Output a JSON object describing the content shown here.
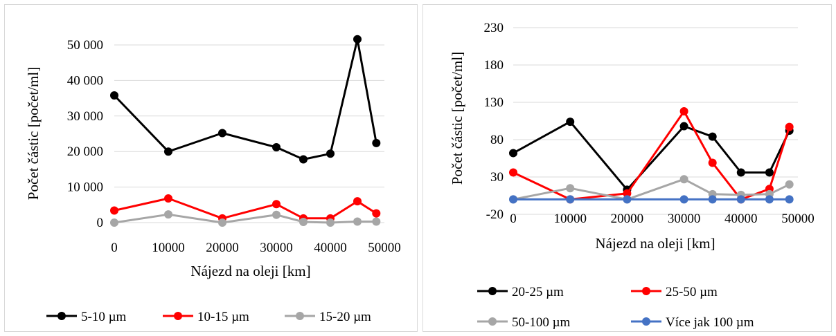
{
  "chart_data": [
    {
      "type": "line",
      "title": "",
      "xlabel": "Nájezd na oleji [km]",
      "ylabel": "Počet částic [počet/ml]",
      "x": [
        0,
        10000,
        20000,
        30000,
        35000,
        40000,
        45000,
        48500
      ],
      "x_ticks": [
        0,
        10000,
        20000,
        30000,
        40000,
        50000
      ],
      "x_tick_labels": [
        "0",
        "10000",
        "20000",
        "30000",
        "40000",
        "50000"
      ],
      "y_ticks": [
        0,
        10000,
        20000,
        30000,
        40000,
        50000
      ],
      "y_tick_labels": [
        "0",
        "10 000",
        "20 000",
        "30 000",
        "40 000",
        "50 000"
      ],
      "xlim": [
        0,
        50000
      ],
      "ylim": [
        0,
        50000
      ],
      "grid": true,
      "legend_position": "bottom",
      "series": [
        {
          "name": "5-10 µm",
          "color": "#000000",
          "values": [
            35800,
            20000,
            25200,
            21200,
            17800,
            19400,
            51600,
            22400
          ]
        },
        {
          "name": "10-15 µm",
          "color": "#ff0000",
          "values": [
            3400,
            6800,
            1200,
            5200,
            1200,
            1200,
            6000,
            2600
          ]
        },
        {
          "name": "15-20 µm",
          "color": "#a6a6a6",
          "values": [
            0,
            2300,
            0,
            2200,
            200,
            0,
            300,
            300
          ]
        }
      ]
    },
    {
      "type": "line",
      "title": "",
      "xlabel": "Nájezd na oleji [km]",
      "ylabel": "Počet částic [počet/ml]",
      "x": [
        0,
        10000,
        20000,
        30000,
        35000,
        40000,
        45000,
        48500
      ],
      "x_ticks": [
        0,
        10000,
        20000,
        30000,
        40000,
        50000
      ],
      "x_tick_labels": [
        "0",
        "10000",
        "20000",
        "30000",
        "40000",
        "50000"
      ],
      "y_ticks": [
        -20,
        30,
        80,
        130,
        180,
        230
      ],
      "y_tick_labels": [
        "-20",
        "30",
        "80",
        "130",
        "180",
        "230"
      ],
      "xlim": [
        0,
        50000
      ],
      "ylim": [
        -20,
        230
      ],
      "grid": true,
      "legend_position": "bottom",
      "series": [
        {
          "name": "20-25 µm",
          "color": "#000000",
          "values": [
            62,
            104,
            13,
            98,
            84,
            36,
            36,
            92
          ]
        },
        {
          "name": "25-50 µm",
          "color": "#ff0000",
          "values": [
            36,
            0,
            8,
            118,
            49,
            0,
            14,
            97
          ]
        },
        {
          "name": "50-100 µm",
          "color": "#a6a6a6",
          "values": [
            0,
            15,
            0,
            27,
            7,
            6,
            7,
            20
          ]
        },
        {
          "name": "Více jak 100 µm",
          "color": "#4472c4",
          "values": [
            0,
            0,
            0,
            0,
            0,
            0,
            0,
            0
          ]
        }
      ]
    }
  ]
}
